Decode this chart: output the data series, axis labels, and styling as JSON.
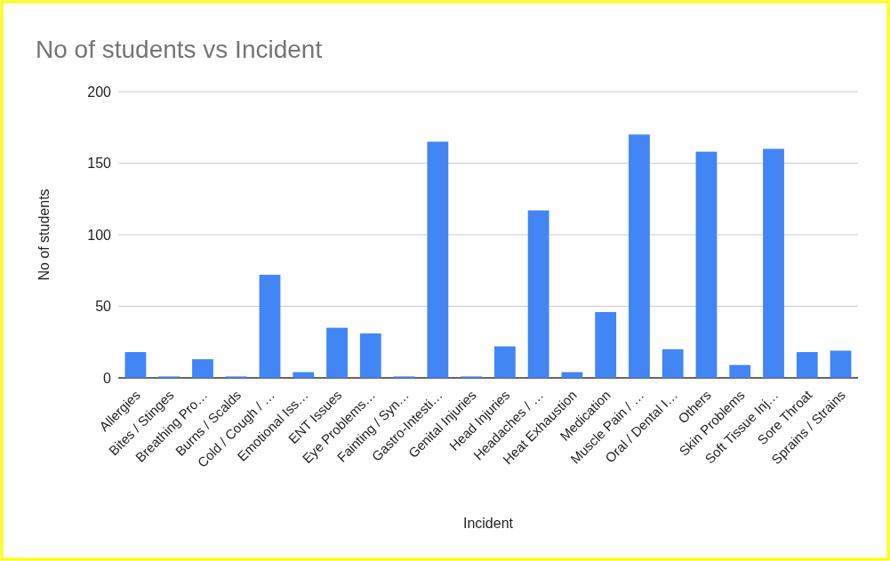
{
  "chart_data": {
    "type": "bar",
    "title": "No of students vs Incident",
    "xlabel": "Incident",
    "ylabel": "No of students",
    "categories": [
      "Allergies",
      "Bites / Stinges",
      "Breathing Pro…",
      "Burns / Scalds",
      "Cold / Cough / …",
      "Emotional Iss…",
      "ENT Issues",
      "Eye Problems…",
      "Fainting / Syn…",
      "Gastro-Intesti…",
      "Genital Injuries",
      "Head Injuries",
      "Headaches / …",
      "Heat Exhaustion",
      "Medication",
      "Muscle Pain / …",
      "Oral / Dental I…",
      "Others",
      "Skin Problems",
      "Soft Tissue Inj…",
      "Sore Throat",
      "Sprains / Strains"
    ],
    "values": [
      18,
      1,
      13,
      1,
      72,
      4,
      35,
      31,
      1,
      165,
      1,
      22,
      117,
      4,
      46,
      170,
      20,
      158,
      9,
      160,
      18,
      19
    ],
    "color": "#4285f4",
    "ylim": [
      0,
      200
    ],
    "yticks": [
      0,
      50,
      100,
      150,
      200
    ],
    "grid": "y"
  }
}
